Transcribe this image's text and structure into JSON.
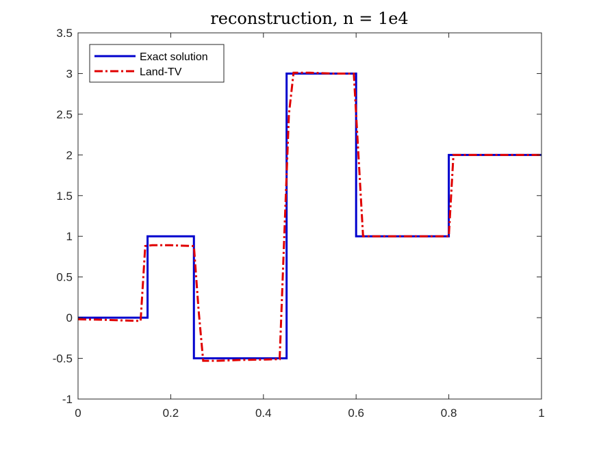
{
  "chart_data": {
    "type": "line",
    "title": "reconstruction, n = 1e4",
    "xlabel": "",
    "ylabel": "",
    "xlim": [
      0,
      1
    ],
    "ylim": [
      -1,
      3.5
    ],
    "grid": false,
    "legend_position": "top-left",
    "x_ticks": [
      {
        "value": 0,
        "label": "0"
      },
      {
        "value": 0.2,
        "label": "0.2"
      },
      {
        "value": 0.4,
        "label": "0.4"
      },
      {
        "value": 0.6,
        "label": "0.6"
      },
      {
        "value": 0.8,
        "label": "0.8"
      },
      {
        "value": 1,
        "label": "1"
      }
    ],
    "y_ticks": [
      {
        "value": -1,
        "label": "-1"
      },
      {
        "value": -0.5,
        "label": "-0.5"
      },
      {
        "value": 0,
        "label": "0"
      },
      {
        "value": 0.5,
        "label": "0.5"
      },
      {
        "value": 1,
        "label": "1"
      },
      {
        "value": 1.5,
        "label": "1.5"
      },
      {
        "value": 2,
        "label": "2"
      },
      {
        "value": 2.5,
        "label": "2.5"
      },
      {
        "value": 3,
        "label": "3"
      },
      {
        "value": 3.5,
        "label": "3.5"
      }
    ],
    "series": [
      {
        "name": "Exact solution",
        "color": "#0000cd",
        "line_style": "solid",
        "x": [
          0,
          0.15,
          0.15,
          0.25,
          0.25,
          0.45,
          0.45,
          0.6,
          0.6,
          0.8,
          0.8,
          1
        ],
        "y": [
          0,
          0,
          1,
          1,
          -0.5,
          -0.5,
          3,
          3,
          1,
          1,
          2,
          2
        ]
      },
      {
        "name": "Land-TV",
        "color": "#e00000",
        "line_style": "dash-dot",
        "x": [
          0,
          0.05,
          0.1,
          0.135,
          0.145,
          0.16,
          0.2,
          0.25,
          0.26,
          0.27,
          0.3,
          0.35,
          0.4,
          0.435,
          0.445,
          0.455,
          0.465,
          0.5,
          0.55,
          0.595,
          0.605,
          0.615,
          0.65,
          0.7,
          0.8,
          0.81,
          0.82,
          0.9,
          1
        ],
        "y": [
          -0.02,
          -0.025,
          -0.035,
          -0.04,
          0.88,
          0.89,
          0.89,
          0.88,
          0.1,
          -0.53,
          -0.53,
          -0.52,
          -0.515,
          -0.51,
          1.0,
          2.5,
          3.01,
          3.01,
          3.0,
          3.0,
          2.0,
          1.0,
          1.0,
          1.0,
          1.0,
          2.0,
          2.0,
          2.0,
          2.0
        ]
      }
    ]
  }
}
